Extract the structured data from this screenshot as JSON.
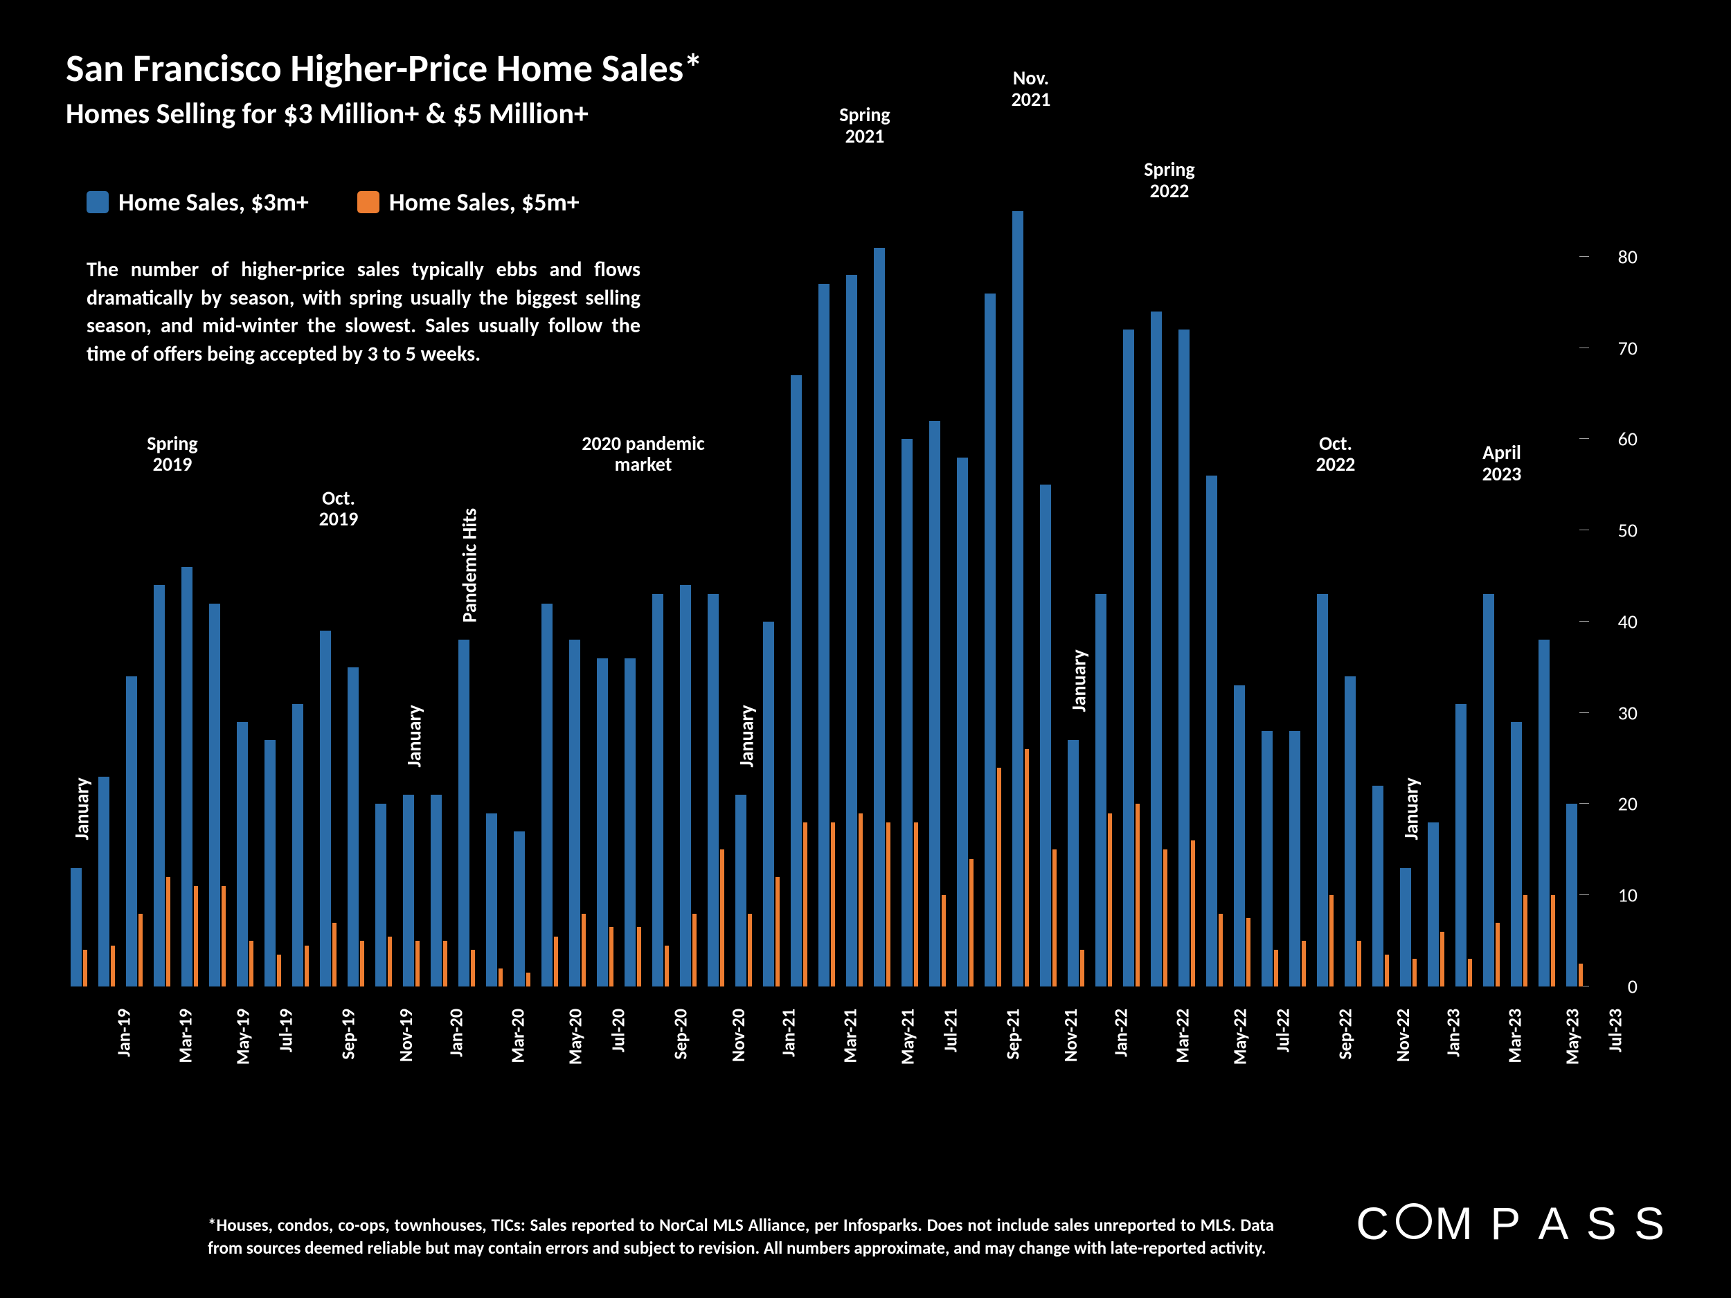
{
  "title": "San Francisco Higher-Price Home Sales*",
  "subtitle": "Homes Selling for $3 Million+ & $5 Million+",
  "legend": [
    {
      "label": "Home Sales, $3m+",
      "color": "#2b6ca8"
    },
    {
      "label": "Home Sales, $5m+",
      "color": "#ed7d31"
    }
  ],
  "description": "The number of higher-price sales typically ebbs and flows dramatically by season, with spring usually the biggest selling season, and mid-winter the slowest. Sales usually follow the time of offers being accepted by 3 to 5 weeks.",
  "footnote": "*Houses, condos, co-ops, townhouses, TICs: Sales reported to NorCal MLS Alliance, per Infosparks. Does not include sales unreported to MLS. Data from sources deemed reliable but may contain errors and subject to revision. All numbers approximate, and may change with late-reported activity.",
  "logo_text": "COMPASS",
  "chart": {
    "type": "bar",
    "background_color": "#000000",
    "text_color": "#ffffff",
    "y_axis": {
      "min": 0,
      "max": 85,
      "ticks": [
        0,
        10,
        20,
        30,
        40,
        50,
        60,
        70,
        80
      ],
      "tick_fontsize": 28
    },
    "x_label_fontsize": 26,
    "x_label_interval": 2,
    "bar_group_gap": 0.35,
    "series": [
      {
        "name": "3m",
        "color": "#2b6ca8",
        "width_frac": 0.6
      },
      {
        "name": "5m",
        "color": "#ed7d31",
        "width_frac": 0.26
      }
    ],
    "categories": [
      "Jan-19",
      "Feb-19",
      "Mar-19",
      "Apr-19",
      "May-19",
      "Jun-19",
      "Jul-19",
      "Aug-19",
      "Sep-19",
      "Oct-19",
      "Nov-19",
      "Dec-19",
      "Jan-20",
      "Feb-20",
      "Mar-20",
      "Apr-20",
      "May-20",
      "Jun-20",
      "Jul-20",
      "Aug-20",
      "Sep-20",
      "Oct-20",
      "Nov-20",
      "Dec-20",
      "Jan-21",
      "Feb-21",
      "Mar-21",
      "Apr-21",
      "May-21",
      "Jun-21",
      "Jul-21",
      "Aug-21",
      "Sep-21",
      "Oct-21",
      "Nov-21",
      "Dec-21",
      "Jan-22",
      "Feb-22",
      "Mar-22",
      "Apr-22",
      "May-22",
      "Jun-22",
      "Jul-22",
      "Aug-22",
      "Sep-22",
      "Oct-22",
      "Nov-22",
      "Dec-22",
      "Jan-23",
      "Feb-23",
      "Mar-23",
      "Apr-23",
      "May-23",
      "Jun-23",
      "Jul-23"
    ],
    "values_3m": [
      13,
      23,
      34,
      44,
      46,
      42,
      29,
      27,
      31,
      39,
      35,
      20,
      21,
      21,
      38,
      19,
      17,
      42,
      38,
      36,
      36,
      43,
      44,
      43,
      21,
      40,
      67,
      77,
      78,
      81,
      60,
      62,
      58,
      76,
      85,
      55,
      27,
      43,
      72,
      74,
      72,
      56,
      33,
      28,
      28,
      43,
      34,
      22,
      13,
      18,
      31,
      43,
      29,
      38,
      20
    ],
    "values_5m": [
      4,
      4.5,
      8,
      12,
      11,
      11,
      5,
      3.5,
      4.5,
      7,
      5,
      5.5,
      5,
      5,
      4,
      2,
      1.5,
      5.5,
      8,
      6.5,
      6.5,
      4.5,
      8,
      15,
      8,
      12,
      18,
      18,
      19,
      18,
      18,
      10,
      14,
      24,
      26,
      15,
      4,
      19,
      20,
      15,
      16,
      8,
      7.5,
      4,
      5,
      10,
      5,
      3.5,
      3,
      6,
      3,
      7,
      10,
      10,
      2.5
    ],
    "annotations": [
      {
        "text": "January",
        "type": "vertical",
        "cat_index": 0,
        "bar_value": 13
      },
      {
        "text": "Spring\n2019",
        "type": "horizontal",
        "cat_index": 3,
        "y_value": 56
      },
      {
        "text": "Oct.\n2019",
        "type": "horizontal",
        "cat_index": 9,
        "y_value": 50
      },
      {
        "text": "January",
        "type": "vertical",
        "cat_index": 12,
        "bar_value": 21
      },
      {
        "text": "Pandemic Hits",
        "type": "vertical",
        "cat_index": 14,
        "bar_value": 38
      },
      {
        "text": "2020 pandemic\nmarket",
        "type": "horizontal",
        "cat_index": 20,
        "y_value": 56
      },
      {
        "text": "January",
        "type": "vertical",
        "cat_index": 24,
        "bar_value": 21
      },
      {
        "text": "Spring\n2021",
        "type": "horizontal",
        "cat_index": 28,
        "y_value": 92
      },
      {
        "text": "Nov.\n2021",
        "type": "horizontal",
        "cat_index": 34,
        "y_value": 96
      },
      {
        "text": "January",
        "type": "vertical",
        "cat_index": 36,
        "bar_value": 27
      },
      {
        "text": "Spring\n2022",
        "type": "horizontal",
        "cat_index": 39,
        "y_value": 86
      },
      {
        "text": "Oct.\n2022",
        "type": "horizontal",
        "cat_index": 45,
        "y_value": 56
      },
      {
        "text": "January",
        "type": "vertical",
        "cat_index": 48,
        "bar_value": 13
      },
      {
        "text": "April\n2023",
        "type": "horizontal",
        "cat_index": 51,
        "y_value": 55
      }
    ]
  }
}
